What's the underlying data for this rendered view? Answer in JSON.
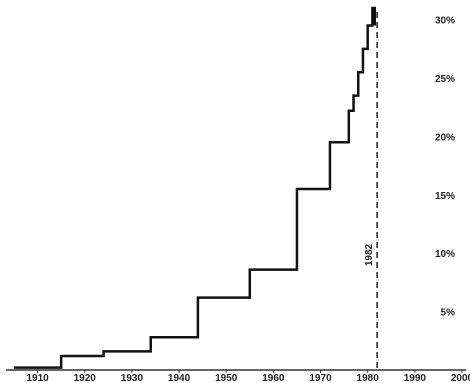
{
  "chart_data": {
    "type": "line",
    "step": true,
    "title": "",
    "xlabel": "",
    "ylabel": "",
    "xlim": [
      1905,
      2000
    ],
    "ylim": [
      0,
      31
    ],
    "x_ticks": [
      1910,
      1920,
      1930,
      1940,
      1950,
      1960,
      1970,
      1980,
      1990,
      2000
    ],
    "x_tick_labels": [
      "1910",
      "1920",
      "1930",
      "1940",
      "1950",
      "1960",
      "1970",
      "1980",
      "1990",
      "2000"
    ],
    "y_ticks": [
      5,
      10,
      15,
      20,
      25,
      30
    ],
    "y_tick_labels": [
      "5%",
      "10%",
      "15%",
      "20%",
      "25%",
      "30%"
    ],
    "y_axis_side": "right",
    "grid": false,
    "legend": "none",
    "color": "#111111",
    "series": [
      {
        "x": [
          1905,
          1915,
          1924,
          1934,
          1944,
          1955,
          1965,
          1972,
          1976,
          1977,
          1978,
          1979,
          1980,
          1981,
          1981.5
        ],
        "y": [
          0.2,
          1.2,
          1.6,
          2.8,
          6.2,
          8.6,
          15.5,
          19.5,
          22.2,
          23.5,
          25.5,
          27.5,
          29.5,
          31,
          29.5
        ]
      }
    ],
    "annotations": [
      {
        "type": "vline",
        "x": 1982,
        "style": "dashed",
        "label": "1982"
      }
    ]
  }
}
